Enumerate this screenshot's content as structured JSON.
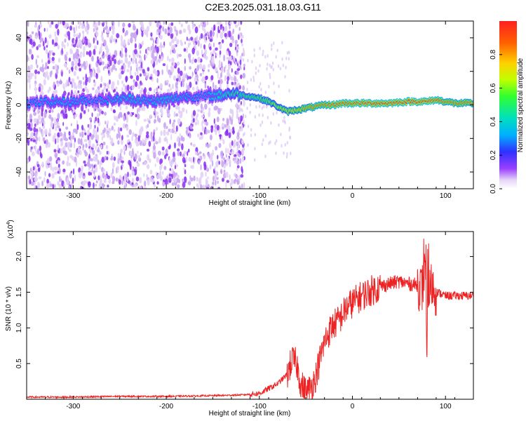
{
  "title": "C2E3.2025.031.18.03.G11",
  "chart_data": [
    {
      "type": "heatmap",
      "xlabel": "Height of straight line (km)",
      "ylabel": "Frequency (Hz)",
      "xlim": [
        -350,
        130
      ],
      "ylim": [
        -50,
        50
      ],
      "x_ticks": [
        -300,
        -200,
        -100,
        0,
        100
      ],
      "y_ticks": [
        -40,
        -20,
        0,
        20,
        40
      ],
      "colorbar": {
        "label": "Normalized spectral amplitude",
        "range": [
          0,
          1
        ],
        "ticks": [
          "0.0",
          "0.2",
          "0.4",
          "0.6",
          "0.8"
        ],
        "tick_values": [
          0,
          0.2,
          0.4,
          0.6,
          0.8
        ],
        "colormap": "rainbow-white"
      },
      "ridge": {
        "x": [
          -350,
          -320,
          -300,
          -280,
          -260,
          -240,
          -220,
          -200,
          -180,
          -160,
          -140,
          -130,
          -120,
          -110,
          -100,
          -90,
          -80,
          -70,
          -60,
          -50,
          -40,
          -30,
          -20,
          -10,
          0,
          20,
          40,
          60,
          80,
          90,
          100,
          110,
          120,
          130
        ],
        "y": [
          1,
          2,
          2,
          3,
          3,
          4,
          2,
          3,
          5,
          5,
          6,
          7,
          6,
          5,
          4,
          2,
          -1,
          -4,
          -3,
          -2,
          -1,
          0,
          0,
          1,
          1,
          1,
          1,
          2,
          2,
          3,
          2,
          1,
          1,
          1
        ],
        "amplitude": [
          0.3,
          0.35,
          0.35,
          0.3,
          0.35,
          0.4,
          0.35,
          0.4,
          0.35,
          0.3,
          0.45,
          0.5,
          0.5,
          0.55,
          0.55,
          0.6,
          0.65,
          0.7,
          0.75,
          0.8,
          0.85,
          0.85,
          0.9,
          0.9,
          0.9,
          0.95,
          0.95,
          0.95,
          0.95,
          0.9,
          0.85,
          0.85,
          0.85,
          0.85
        ]
      },
      "noise_region_x": [
        -350,
        -125
      ]
    },
    {
      "type": "line",
      "xlabel": "Height of straight line (km)",
      "ylabel": "SNR (10 * v/v)",
      "y_scale_label": "(x10",
      "y_scale_exponent": "4",
      "y_scale_close": ")",
      "xlim": [
        -350,
        130
      ],
      "ylim": [
        0,
        2.35
      ],
      "x_ticks": [
        -300,
        -200,
        -100,
        0,
        100
      ],
      "y_ticks": [
        0.5,
        1.0,
        1.5,
        2.0
      ],
      "y_tick_labels": [
        "0.5",
        "1.0",
        "1.5",
        "2.0"
      ],
      "color": "#ee2222",
      "series": [
        {
          "x": [
            -350,
            -300,
            -250,
            -200,
            -150,
            -120,
            -100,
            -90,
            -80,
            -70,
            -65,
            -60,
            -55,
            -50,
            -45,
            -40,
            -35,
            -30,
            -25,
            -20,
            -15,
            -10,
            -5,
            0,
            10,
            20,
            30,
            40,
            50,
            60,
            70,
            75,
            78,
            80,
            82,
            85,
            90,
            95,
            100,
            110,
            120,
            130
          ],
          "y": [
            0.03,
            0.03,
            0.04,
            0.04,
            0.05,
            0.06,
            0.08,
            0.15,
            0.22,
            0.35,
            0.55,
            0.5,
            0.2,
            0.1,
            0.15,
            0.3,
            0.55,
            0.8,
            0.95,
            1.05,
            1.1,
            1.2,
            1.3,
            1.35,
            1.45,
            1.52,
            1.58,
            1.62,
            1.65,
            1.62,
            1.6,
            1.55,
            1.8,
            0.6,
            1.5,
            1.6,
            1.5,
            1.48,
            1.45,
            1.45,
            1.45,
            1.45
          ]
        }
      ]
    }
  ]
}
